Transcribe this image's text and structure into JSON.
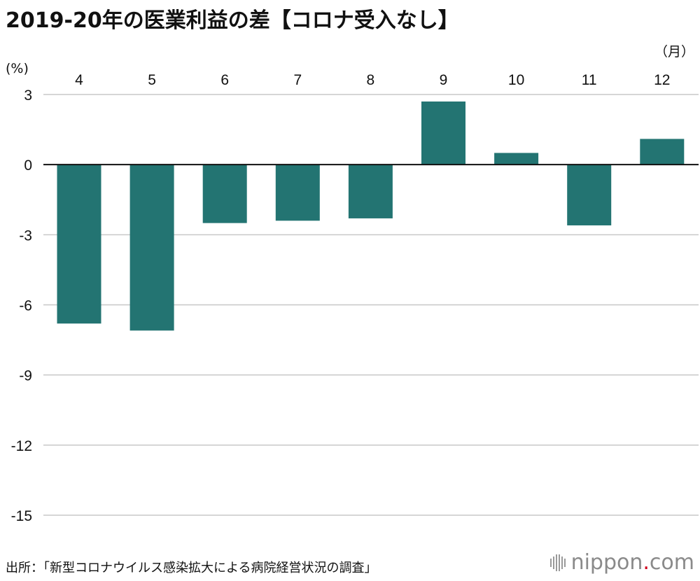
{
  "title": "2019-20年の医業利益の差【コロナ受入なし】",
  "source": "出所：「新型コロナウイルス感染拡大による病院経営状況の調査」",
  "brand": {
    "name_part1": "nippon",
    "dot": ".",
    "name_part2": "com",
    "icon": "bars-logo-icon",
    "dot_color": "#d0021b"
  },
  "colors": {
    "bar": "#237472",
    "grid": "#c8c8c8",
    "zero_line": "#111111"
  },
  "chart_data": {
    "type": "bar",
    "categories": [
      "4",
      "5",
      "6",
      "7",
      "8",
      "9",
      "10",
      "11",
      "12"
    ],
    "values": [
      -6.8,
      -7.1,
      -2.5,
      -2.4,
      -2.3,
      2.7,
      0.5,
      -2.6,
      1.1
    ],
    "ylim": [
      -15,
      3
    ],
    "yticks": [
      3,
      0,
      -3,
      -6,
      -9,
      -12,
      -15
    ],
    "y_unit": "(%)",
    "x_unit": "（月）",
    "x_labels_position": "top",
    "grid": true,
    "legend": null
  }
}
